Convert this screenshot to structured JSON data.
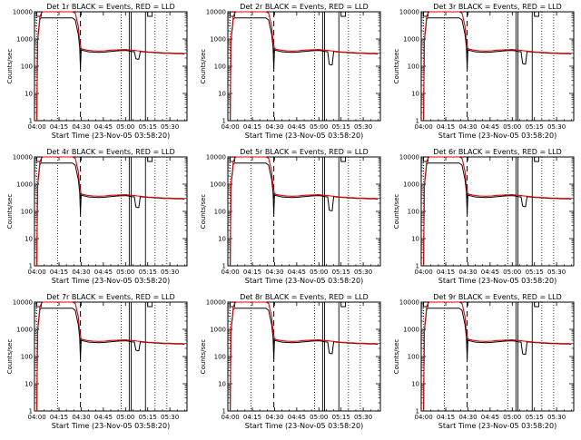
{
  "figure": {
    "background": "#ffffff",
    "event_color": "#000000",
    "lld_color": "#e00000"
  },
  "chart_data": [
    {
      "type": "line",
      "title": "Det 1r BLACK = Events, RED = LLD"
    },
    {
      "type": "line",
      "title": "Det 2r BLACK = Events, RED = LLD"
    },
    {
      "type": "line",
      "title": "Det 3r BLACK = Events, RED = LLD"
    },
    {
      "type": "line",
      "title": "Det 4r BLACK = Events, RED = LLD"
    },
    {
      "type": "line",
      "title": "Det 5r BLACK = Events, RED = LLD"
    },
    {
      "type": "line",
      "title": "Det 6r BLACK = Events, RED = LLD"
    },
    {
      "type": "line",
      "title": "Det 7r BLACK = Events, RED = LLD"
    },
    {
      "type": "line",
      "title": "Det 8r BLACK = Events, RED = LLD"
    },
    {
      "type": "line",
      "title": "Det 9r BLACK = Events, RED = LLD"
    }
  ],
  "shared": {
    "xlabel": "Start Time (23-Nov-05 03:58:20)",
    "ylabel": "Counts/sec",
    "x_ticks": [
      "04:00",
      "04:15",
      "04:30",
      "04:45",
      "05:00",
      "05:15",
      "05:30"
    ],
    "x_tick_values_min": [
      0,
      15,
      30,
      45,
      60,
      75,
      90
    ],
    "xlim_min": [
      -1.6,
      101.6
    ],
    "y_scale": "log",
    "ylim": [
      1,
      10000
    ],
    "y_ticks": [
      "1",
      "10",
      "100",
      "1000",
      "10000"
    ],
    "y_tick_values": [
      1,
      10,
      100,
      1000,
      10000
    ],
    "markers": {
      "dotted_min": [
        0,
        14,
        57,
        80,
        88
      ],
      "dashed_min": [
        29.5
      ],
      "solid_min": [
        62.5,
        63.8,
        73.5
      ],
      "box_min": [
        75,
        78
      ]
    },
    "events_series": {
      "name": "Events",
      "x": [
        0,
        0.5,
        1,
        1.5,
        2,
        3,
        4,
        5,
        6,
        8,
        10,
        12,
        14,
        16,
        18,
        20,
        22,
        24,
        26,
        28,
        29,
        29.5,
        30,
        31,
        33,
        35,
        38,
        42,
        46,
        50,
        55,
        60,
        62,
        64,
        66,
        67,
        68,
        69,
        70,
        72,
        74,
        76,
        78,
        80,
        82,
        86,
        90,
        94,
        98,
        100
      ],
      "y": [
        1,
        700,
        1500,
        2500,
        5500,
        6000,
        6000,
        6000,
        6000,
        6000,
        6000,
        6000,
        6000,
        6000,
        6000,
        6000,
        6000,
        6000,
        5000,
        1500,
        500,
        80,
        400,
        380,
        360,
        340,
        330,
        320,
        330,
        350,
        370,
        380,
        370,
        350,
        340,
        190,
        180,
        180,
        350,
        340,
        330,
        320,
        320,
        310,
        310,
        300,
        300,
        290,
        290,
        280
      ]
    },
    "lld_series": {
      "name": "LLD",
      "x": [
        0,
        0.5,
        1,
        1.5,
        2,
        3,
        4,
        5,
        6,
        8,
        10,
        12,
        14,
        16,
        18,
        20,
        22,
        24,
        26,
        28,
        29,
        30,
        31,
        33,
        35,
        38,
        42,
        46,
        50,
        55,
        60,
        62,
        64,
        66,
        68,
        70,
        72,
        74,
        76,
        78,
        80,
        82,
        86,
        90,
        94,
        98,
        100
      ],
      "y": [
        1,
        800,
        1800,
        3000,
        6500,
        9000,
        10000,
        10000,
        10000,
        10000,
        10000,
        10000,
        10000,
        10000,
        10000,
        10000,
        10000,
        10000,
        9000,
        3000,
        800,
        450,
        420,
        400,
        380,
        370,
        360,
        370,
        390,
        400,
        410,
        400,
        390,
        380,
        370,
        360,
        350,
        340,
        330,
        330,
        320,
        320,
        310,
        310,
        300,
        300,
        290
      ]
    },
    "dip_depth": [
      1.0,
      1.6,
      1.5,
      1.3,
      1.7,
      1.2,
      1.1,
      1.4,
      1.5
    ],
    "spike_top": [
      14000,
      14000,
      14000,
      14000,
      14000,
      14000,
      14000,
      14000,
      14000
    ]
  }
}
